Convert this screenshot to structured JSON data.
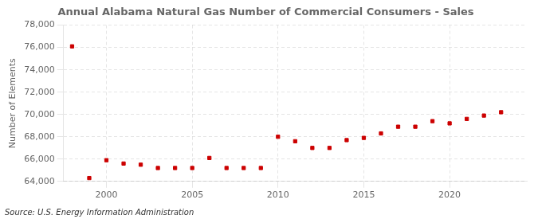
{
  "chart_data": {
    "type": "scatter",
    "title": "Annual Alabama Natural Gas Number of Commercial Consumers - Sales",
    "ylabel": "Number of Elements",
    "annotation": "Source: U.S. Energy Information Administration",
    "x": [
      1998,
      1999,
      2000,
      2001,
      2002,
      2003,
      2004,
      2005,
      2006,
      2007,
      2008,
      2009,
      2010,
      2011,
      2012,
      2013,
      2014,
      2015,
      2016,
      2017,
      2018,
      2019,
      2020,
      2021,
      2022,
      2023
    ],
    "values": [
      76100,
      64300,
      65900,
      65600,
      65500,
      65200,
      65200,
      65200,
      66100,
      65200,
      65200,
      65200,
      68000,
      67600,
      67000,
      67000,
      67700,
      67900,
      68300,
      68900,
      68900,
      69400,
      69200,
      69600,
      69900,
      70200
    ],
    "color": "#cc0000",
    "marker": "square",
    "xlim": [
      1997.5,
      2024.5
    ],
    "xticks": [
      2000,
      2005,
      2010,
      2015,
      2020
    ],
    "ylim": [
      64000,
      78000
    ],
    "yticks": [
      {
        "value": 64000,
        "label": "64,000"
      },
      {
        "value": 66000,
        "label": "66,000"
      },
      {
        "value": 68000,
        "label": "68,000"
      },
      {
        "value": 70000,
        "label": "70,000"
      },
      {
        "value": 72000,
        "label": "72,000"
      },
      {
        "value": 74000,
        "label": "74,000"
      },
      {
        "value": 76000,
        "label": "76,000"
      },
      {
        "value": 78000,
        "label": "78,000"
      }
    ],
    "grid": true
  }
}
